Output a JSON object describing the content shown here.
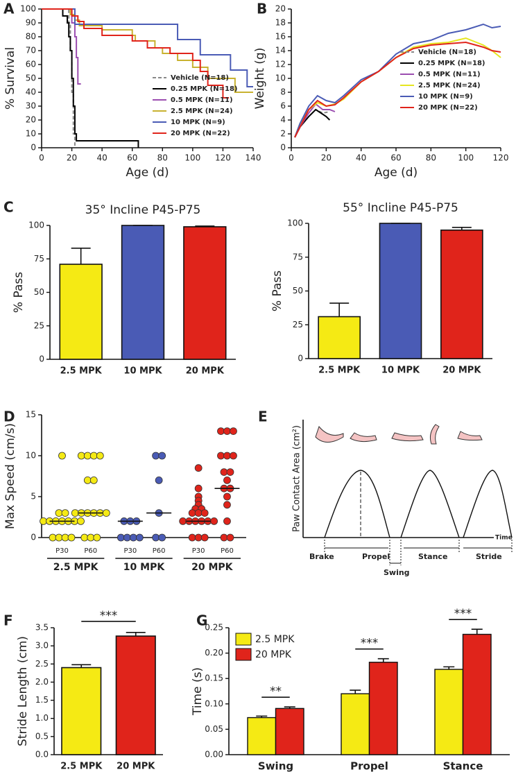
{
  "chart_data": [
    {
      "type": "line",
      "step": true,
      "panel_label": "A",
      "xlabel": "Age (d)",
      "ylabel": "% Survival",
      "xlim": [
        0,
        140
      ],
      "xticks": [
        0,
        20,
        40,
        60,
        80,
        100,
        120,
        140
      ],
      "ylim": [
        0,
        100
      ],
      "yticks": [
        0,
        10,
        20,
        30,
        40,
        50,
        60,
        70,
        80,
        90,
        100
      ],
      "legend": "lower right",
      "series": [
        {
          "name": "Vehicle (N=18)",
          "color": "#888888",
          "linestyle": "dashed",
          "x": [
            0,
            18,
            19,
            20,
            21,
            22
          ],
          "values": [
            100,
            90,
            70,
            40,
            10,
            0
          ]
        },
        {
          "name": "0.25 MPK (N=18)",
          "color": "#000000",
          "x": [
            0,
            14,
            17,
            18,
            19,
            20,
            21,
            22,
            23,
            64
          ],
          "values": [
            100,
            95,
            90,
            80,
            70,
            50,
            30,
            10,
            5,
            0
          ]
        },
        {
          "name": "0.5 MPK (N=11)",
          "color": "#9b4db0",
          "x": [
            0,
            20,
            22,
            23,
            24,
            26
          ],
          "values": [
            100,
            90,
            80,
            65,
            46,
            46
          ]
        },
        {
          "name": "2.5 MPK (N=24)",
          "color": "#c8b230",
          "x": [
            0,
            19,
            22,
            25,
            40,
            60,
            62,
            75,
            80,
            90,
            100,
            110,
            128,
            140
          ],
          "values": [
            100,
            96,
            92,
            88,
            85,
            81,
            77,
            72,
            68,
            63,
            58,
            50,
            40,
            40
          ]
        },
        {
          "name": "10 MPK (N=9)",
          "color": "#4a5bb5",
          "x": [
            0,
            20,
            22,
            60,
            90,
            105,
            125,
            136,
            140
          ],
          "values": [
            100,
            100,
            89,
            89,
            78,
            67,
            56,
            44,
            44
          ]
        },
        {
          "name": "20 MPK (N=22)",
          "color": "#e0241b",
          "x": [
            0,
            20,
            24,
            28,
            40,
            60,
            70,
            85,
            100,
            105,
            110,
            120,
            124
          ],
          "values": [
            100,
            95,
            91,
            86,
            81,
            77,
            72,
            68,
            63,
            55,
            45,
            36,
            36
          ]
        }
      ]
    },
    {
      "type": "line",
      "panel_label": "B",
      "xlabel": "Age (d)",
      "ylabel": "Weight (g)",
      "xlim": [
        0,
        120
      ],
      "xticks": [
        0,
        20,
        40,
        60,
        80,
        100,
        120
      ],
      "ylim": [
        0,
        20
      ],
      "yticks": [
        0,
        2,
        4,
        6,
        8,
        10,
        12,
        14,
        16,
        18,
        20
      ],
      "legend": "center right",
      "series": [
        {
          "name": "Vehicle (N=18)",
          "color": "#888888",
          "linestyle": "dashed",
          "x": [
            2,
            5,
            10,
            14,
            18,
            22
          ],
          "values": [
            1.5,
            3,
            4.5,
            5.5,
            5,
            5.2
          ]
        },
        {
          "name": "0.25 MPK (N=18)",
          "color": "#000000",
          "x": [
            2,
            5,
            10,
            14,
            17,
            20,
            22
          ],
          "values": [
            1.5,
            3,
            4.5,
            5.5,
            5,
            4.5,
            4
          ]
        },
        {
          "name": "0.5 MPK (N=11)",
          "color": "#9b4db0",
          "x": [
            2,
            5,
            10,
            14,
            18,
            22,
            25
          ],
          "values": [
            1.5,
            3,
            5,
            6.3,
            5.5,
            5.5,
            5.2
          ]
        },
        {
          "name": "2.5 MPK (N=24)",
          "color": "#e6e620",
          "x": [
            2,
            5,
            10,
            15,
            20,
            25,
            30,
            40,
            50,
            60,
            70,
            80,
            90,
            100,
            110,
            115,
            120
          ],
          "values": [
            1.5,
            3.5,
            5.5,
            6.5,
            6,
            6.3,
            7,
            9.5,
            11,
            13,
            14.5,
            15,
            15.2,
            15.8,
            14.8,
            14,
            13
          ]
        },
        {
          "name": "10 MPK (N=9)",
          "color": "#4a5bb5",
          "x": [
            2,
            5,
            10,
            15,
            20,
            25,
            30,
            40,
            50,
            60,
            70,
            80,
            90,
            100,
            110,
            115,
            120
          ],
          "values": [
            1.5,
            3.5,
            6,
            7.5,
            6.8,
            6.5,
            7.5,
            9.8,
            11,
            13.5,
            15,
            15.5,
            16.5,
            17,
            17.8,
            17.3,
            17.5
          ]
        },
        {
          "name": "20 MPK (N=22)",
          "color": "#e0241b",
          "x": [
            2,
            5,
            10,
            15,
            20,
            25,
            30,
            40,
            50,
            60,
            70,
            80,
            90,
            100,
            110,
            115,
            120
          ],
          "values": [
            1.5,
            3,
            5.5,
            6.8,
            6,
            6.2,
            7.2,
            9.5,
            11,
            13,
            14.3,
            14.8,
            15,
            15.2,
            14.5,
            14,
            13.8
          ]
        }
      ]
    },
    {
      "type": "bar",
      "panel_label": "C",
      "title": "35° Incline P45-P75",
      "ylabel": "% Pass",
      "categories": [
        "2.5 MPK",
        "10 MPK",
        "20 MPK"
      ],
      "values": [
        71,
        100,
        99
      ],
      "errors": [
        12,
        0,
        0.5
      ],
      "colors": [
        "#f5ea14",
        "#4a5bb5",
        "#e0241b"
      ],
      "ylim": [
        0,
        100
      ],
      "yticks": [
        0,
        25,
        50,
        75,
        100
      ]
    },
    {
      "type": "bar",
      "title": "55° Incline P45-P75",
      "ylabel": "% Pass",
      "categories": [
        "2.5 MPK",
        "10 MPK",
        "20 MPK"
      ],
      "values": [
        31,
        100,
        95
      ],
      "errors": [
        10,
        0,
        2
      ],
      "colors": [
        "#f5ea14",
        "#4a5bb5",
        "#e0241b"
      ],
      "ylim": [
        0,
        100
      ],
      "yticks": [
        0,
        25,
        50,
        75,
        100
      ]
    },
    {
      "type": "dot",
      "panel_label": "D",
      "ylabel": "Max Speed (cm/s)",
      "ylim": [
        0,
        15
      ],
      "yticks": [
        0,
        5,
        10,
        15
      ],
      "groups": [
        {
          "name": "2.5 MPK",
          "color": "#f5ea14",
          "subgroups": [
            {
              "name": "P30",
              "median": 2,
              "values": [
                10,
                3,
                3,
                2,
                2,
                2,
                2,
                2,
                2,
                2,
                0,
                0,
                0,
                0
              ]
            },
            {
              "name": "P60",
              "median": 3,
              "values": [
                10,
                10,
                10,
                10,
                7,
                7,
                3,
                3,
                3,
                3,
                3,
                3,
                0,
                0,
                0
              ]
            }
          ]
        },
        {
          "name": "10 MPK",
          "color": "#4a5bb5",
          "subgroups": [
            {
              "name": "P30",
              "median": 2,
              "values": [
                2,
                2,
                2,
                0,
                0,
                0,
                0
              ]
            },
            {
              "name": "P60",
              "median": 3,
              "values": [
                10,
                10,
                7,
                3,
                0,
                0
              ]
            }
          ]
        },
        {
          "name": "20 MPK",
          "color": "#e0241b",
          "subgroups": [
            {
              "name": "P30",
              "median": 2,
              "values": [
                8.5,
                6,
                5,
                4.5,
                4,
                3.5,
                3.5,
                3,
                3,
                3,
                2,
                2,
                2,
                2,
                2,
                2,
                0,
                0,
                0
              ]
            },
            {
              "name": "P60",
              "median": 6,
              "values": [
                13,
                13,
                13,
                10,
                10,
                10,
                8,
                8,
                7,
                6,
                6,
                5,
                4,
                2,
                0,
                0
              ]
            }
          ]
        }
      ]
    },
    {
      "type": "bar",
      "panel_label": "F",
      "ylabel": "Stride Length (cm)",
      "categories": [
        "2.5 MPK",
        "20 MPK"
      ],
      "values": [
        2.4,
        3.27
      ],
      "errors": [
        0.08,
        0.1
      ],
      "colors": [
        "#f5ea14",
        "#e0241b"
      ],
      "annotations": [
        "***"
      ],
      "ylim": [
        0,
        3.5
      ],
      "yticks": [
        {
          "value": 0,
          "label": "0.0"
        },
        0.5,
        {
          "value": 1,
          "label": "1.0"
        },
        1.5,
        {
          "value": 2,
          "label": "2.0"
        },
        2.5,
        {
          "value": 3,
          "label": "3.0"
        },
        3.5
      ]
    },
    {
      "type": "grouped_bar",
      "panel_label": "G",
      "ylabel": "Time (s)",
      "legend": "upper left",
      "categories": [
        "Swing",
        "Propel",
        "Stance"
      ],
      "annotations": [
        "**",
        "***",
        "***"
      ],
      "ylim": [
        0,
        0.25
      ],
      "yticks": [
        {
          "value": 0,
          "label": "0.00"
        },
        0.05,
        {
          "value": 0.1,
          "label": "0.10"
        },
        0.15,
        {
          "value": 0.2,
          "label": "0.20"
        },
        0.25
      ],
      "series": [
        {
          "name": "2.5 MPK",
          "color": "#f5ea14",
          "values": [
            0.073,
            0.12,
            0.168
          ],
          "errors": [
            0.003,
            0.007,
            0.005
          ]
        },
        {
          "name": "20 MPK",
          "color": "#e0241b",
          "values": [
            0.091,
            0.182,
            0.237
          ],
          "errors": [
            0.003,
            0.007,
            0.01
          ]
        }
      ]
    }
  ],
  "diagram": {
    "panel_label": "E",
    "y_label": "Paw Contact Area (cm²)",
    "x_label": "Time",
    "phases": [
      "Brake",
      "Propel",
      "Swing",
      "Stance",
      "Stride"
    ]
  }
}
